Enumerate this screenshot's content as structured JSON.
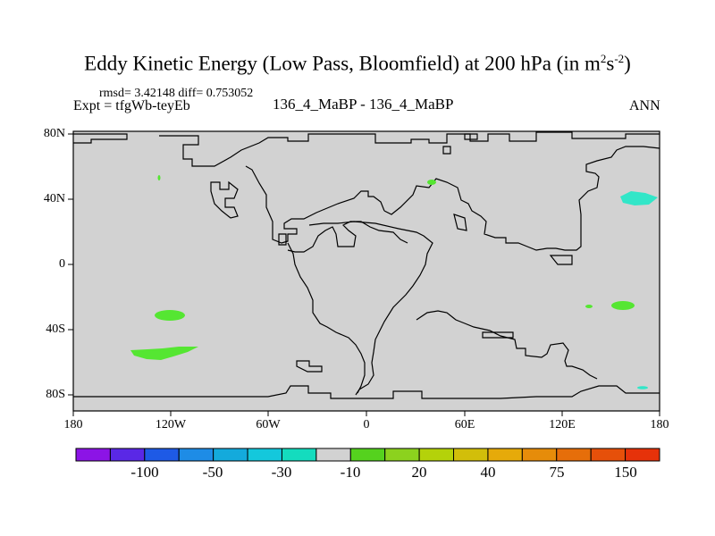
{
  "title": {
    "main": "Eddy Kinetic Energy (Low Pass, Bloomfield) at 200 hPa (in m",
    "sup1": "2",
    "mid": "s",
    "sup2": "-2",
    "end": ")"
  },
  "stats_line": "rmsd= 3.42148 diff= 0.753052",
  "expt_line": "Expt = tfgWb-teyEb",
  "center_label": "136_4_MaBP - 136_4_MaBP",
  "season": "ANN",
  "colors": {
    "map_fill": "#d2d2d2",
    "green_patch": "#55e632",
    "cyan_patch": "#32e6c8"
  },
  "lat_labels": [
    "80N",
    "40N",
    "0",
    "40S",
    "80S"
  ],
  "lon_labels": [
    "180",
    "120W",
    "60W",
    "0",
    "60E",
    "120E",
    "180"
  ],
  "colorbar": {
    "colors": [
      "#8c14e6",
      "#5a28e6",
      "#1e5ae6",
      "#1e8ce6",
      "#14aadc",
      "#14c8dc",
      "#14dcbe",
      "#d2d2d2",
      "#55d21e",
      "#8cd21e",
      "#b4d20a",
      "#d2be0a",
      "#e6aa0a",
      "#e68c0a",
      "#e66e0a",
      "#e6500a",
      "#e6320a"
    ],
    "labels": [
      "-100",
      "-50",
      "-30",
      "-10",
      "20",
      "40",
      "75",
      "150"
    ]
  }
}
